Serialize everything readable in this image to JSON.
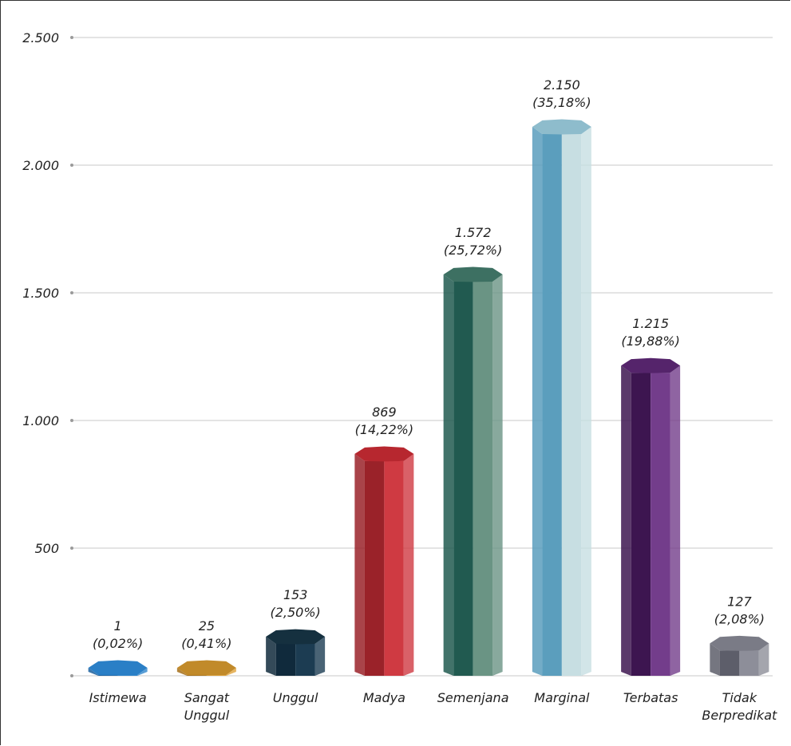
{
  "chart_data": {
    "type": "bar",
    "title": "",
    "xlabel": "",
    "ylabel": "",
    "ylim": [
      0,
      2500
    ],
    "yticks": [
      500,
      1000,
      1500,
      2000,
      2500
    ],
    "ytick_labels": [
      "500",
      "1.000",
      "1.500",
      "2.000",
      "2.500"
    ],
    "grid": true,
    "categories": [
      [
        "Istimewa"
      ],
      [
        "Sangat",
        "Unggul"
      ],
      [
        "Unggul"
      ],
      [
        "Madya"
      ],
      [
        "Semenjana"
      ],
      [
        "Marginal"
      ],
      [
        "Terbatas"
      ],
      [
        "Tidak",
        "Berpredikat"
      ]
    ],
    "values": [
      1,
      25,
      153,
      869,
      1572,
      2150,
      1215,
      127
    ],
    "value_labels": [
      "1",
      "25",
      "153",
      "869",
      "1.572",
      "2.150",
      "1.215",
      "127"
    ],
    "percent_labels": [
      "(0,02%)",
      "(0,41%)",
      "(2,50%)",
      "(14,22%)",
      "(25,72%)",
      "(35,18%)",
      "(19,88%)",
      "(2,08%)"
    ],
    "colors": [
      {
        "dark": "#1a5f9e",
        "light": "#2f86cc",
        "top": "#2a7fc6"
      },
      {
        "dark": "#a46f19",
        "light": "#e0a33a",
        "top": "#c18a2a"
      },
      {
        "dark": "#102a3c",
        "light": "#1c3c52",
        "top": "#15303f"
      },
      {
        "dark": "#9a2229",
        "light": "#cf3a42",
        "top": "#b7272f"
      },
      {
        "dark": "#215a50",
        "light": "#6a9484",
        "top": "#3d7062"
      },
      {
        "dark": "#5b9ebd",
        "light": "#c7dee2",
        "top": "#8ebccc"
      },
      {
        "dark": "#3d1550",
        "light": "#733d8b",
        "top": "#55246b"
      },
      {
        "dark": "#5d5e6a",
        "light": "#8d8e99",
        "top": "#7a7b86"
      }
    ]
  }
}
